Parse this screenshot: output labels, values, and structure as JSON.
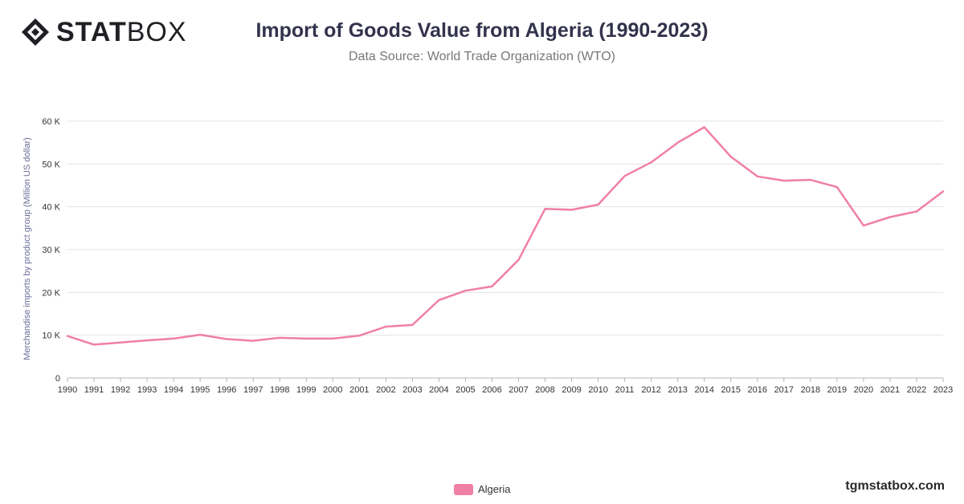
{
  "brand": {
    "logo_bold": "STAT",
    "logo_light": "BOX",
    "footer": "tgmstatbox.com"
  },
  "title": "Import of Goods Value from Algeria (1990-2023)",
  "subtitle": "Data Source: World Trade Organization (WTO)",
  "colors": {
    "series": "#f07fa6",
    "grid": "#e3e3e3",
    "axis_text": "#333333",
    "ylabel_text": "#6b6b9a"
  },
  "chart_data": {
    "type": "line",
    "ylabel": "Merchandise imports by product group (Million US dollar)",
    "xlabel": "",
    "ylim": [
      0,
      60000
    ],
    "yticks": [
      {
        "value": 0,
        "label": "0"
      },
      {
        "value": 10000,
        "label": "10 K"
      },
      {
        "value": 20000,
        "label": "20 K"
      },
      {
        "value": 30000,
        "label": "30 K"
      },
      {
        "value": 40000,
        "label": "40 K"
      },
      {
        "value": 50000,
        "label": "50 K"
      },
      {
        "value": 60000,
        "label": "60 K"
      }
    ],
    "x": [
      "1990",
      "1991",
      "1992",
      "1993",
      "1994",
      "1995",
      "1996",
      "1997",
      "1998",
      "1999",
      "2000",
      "2001",
      "2002",
      "2003",
      "2004",
      "2005",
      "2006",
      "2007",
      "2008",
      "2009",
      "2010",
      "2011",
      "2012",
      "2013",
      "2014",
      "2015",
      "2016",
      "2017",
      "2018",
      "2019",
      "2020",
      "2021",
      "2022",
      "2023"
    ],
    "series": [
      {
        "name": "Algeria",
        "values": [
          9800,
          7800,
          8300,
          8800,
          9200,
          10100,
          9100,
          8700,
          9400,
          9200,
          9200,
          9900,
          12000,
          12400,
          18200,
          20400,
          21400,
          27600,
          39500,
          39300,
          40500,
          47200,
          50400,
          55000,
          58600,
          51700,
          47100,
          46100,
          46300,
          44600,
          35600,
          37600,
          38900,
          43600
        ]
      }
    ],
    "legend": "bottom-center",
    "grid": true
  }
}
